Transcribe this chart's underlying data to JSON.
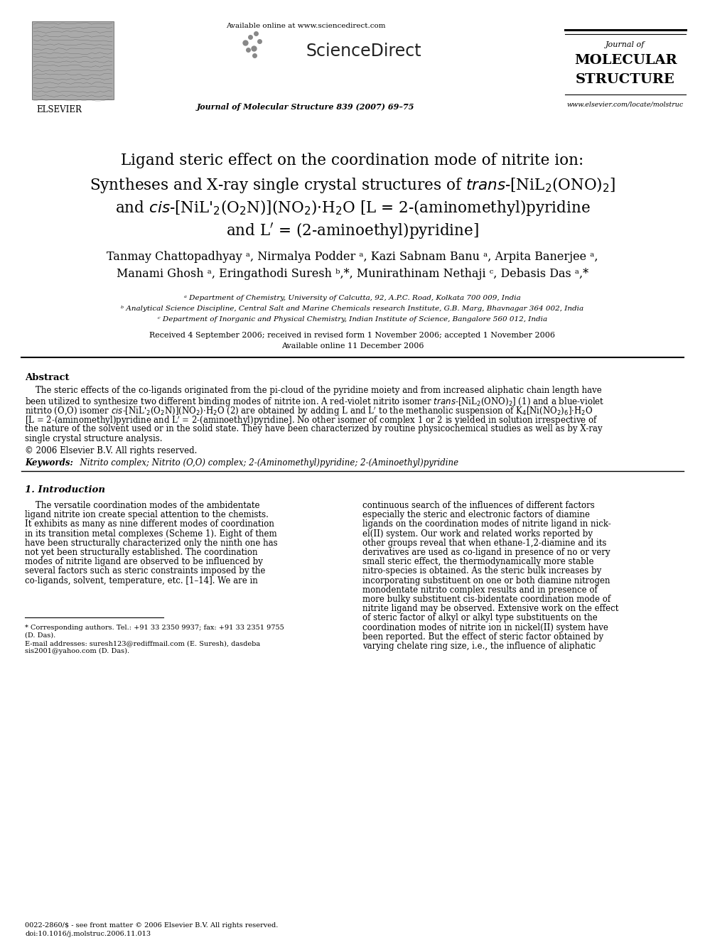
{
  "bg_color": "#ffffff",
  "header_available": "Available online at www.sciencedirect.com",
  "header_journal_info": "Journal of Molecular Structure 839 (2007) 69–75",
  "journal_name1": "Journal of",
  "journal_name2": "MOLECULAR",
  "journal_name3": "STRUCTURE",
  "journal_url": "www.elsevier.com/locate/molstruc",
  "elsevier_text": "ELSEVIER",
  "title1": "Ligand steric effect on the coordination mode of nitrite ion:",
  "title2_pre": "Syntheses and X-ray single crystal structures of ",
  "title2_italic": "trans",
  "title2_post": "-[NiL₂(ONO)₂]",
  "title3_pre": "and ",
  "title3_italic": "cis",
  "title3_post": "-[NiL′₂(O₂N)](NO₂)·H₂O [L = 2-(aminomethyl)pyridine",
  "title4": "and L′ = (2-aminoethyl)pyridine]",
  "authors1": "Tanmay Chattopadhyay ᵃ, Nirmalya Podder ᵃ, Kazi Sabnam Banu ᵃ, Arpita Banerjee ᵃ,",
  "authors2": "Manami Ghosh ᵃ, Eringathodi Suresh ᵇ,*, Munirathinam Nethaji ᶜ, Debasis Das ᵃ,*",
  "affil_a": "ᵃ Department of Chemistry, University of Calcutta, 92, A.P.C. Road, Kolkata 700 009, India",
  "affil_b": "ᵇ Analytical Science Discipline, Central Salt and Marine Chemicals research Institute, G.B. Marg, Bhavnagar 364 002, India",
  "affil_c": "ᶜ Department of Inorganic and Physical Chemistry, Indian Institute of Science, Bangalore 560 012, India",
  "received": "Received 4 September 2006; received in revised form 1 November 2006; accepted 1 November 2006",
  "available_online2": "Available online 11 December 2006",
  "abstract_title": "Abstract",
  "abs_line1": "    The steric effects of the co-ligands originated from the pi-cloud of the pyridine moiety and from increased aliphatic chain length have",
  "abs_line2": "been utilized to synthesize two different binding modes of nitrite ion. A red-violet nitrito isomer trans-[NiL₂(ONO)₂] (1) and a blue-violet",
  "abs_line3": "nitrito (O,O) isomer cis-[NiL′₂(O₂N)](NO₂)·H₂O (2) are obtained by adding L and L′ to the methanolic suspension of K₄[Ni(NO₂)₆]·H₂O",
  "abs_line4": "[L = 2-(aminomethyl)pyridine and L′ = 2-(aminoethyl)pyridine]. No other isomer of complex 1 or 2 is yielded in solution irrespective of",
  "abs_line5": "the nature of the solvent used or in the solid state. They have been characterized by routine physicochemical studies as well as by X-ray",
  "abs_line6": "single crystal structure analysis.",
  "copyright": "© 2006 Elsevier B.V. All rights reserved.",
  "keywords_label": "Keywords:",
  "keywords_text": "  Nitrito complex; Nitrito (O,O) complex; 2-(Aminomethyl)pyridine; 2-(Aminoethyl)pyridine",
  "sec1_title": "1. Introduction",
  "left_col": [
    "    The versatile coordination modes of the ambidentate",
    "ligand nitrite ion create special attention to the chemists.",
    "It exhibits as many as nine different modes of coordination",
    "in its transition metal complexes (Scheme 1). Eight of them",
    "have been structurally characterized only the ninth one has",
    "not yet been structurally established. The coordination",
    "modes of nitrite ligand are observed to be influenced by",
    "several factors such as steric constraints imposed by the",
    "co-ligands, solvent, temperature, etc. [1–14]. We are in"
  ],
  "right_col": [
    "continuous search of the influences of different factors",
    "especially the steric and electronic factors of diamine",
    "ligands on the coordination modes of nitrite ligand in nick-",
    "el(II) system. Our work and related works reported by",
    "other groups reveal that when ethane-1,2-diamine and its",
    "derivatives are used as co-ligand in presence of no or very",
    "small steric effect, the thermodynamically more stable",
    "nitro-species is obtained. As the steric bulk increases by",
    "incorporating substituent on one or both diamine nitrogen",
    "monodentate nitrito complex results and in presence of",
    "more bulky substituent cis-bidentate coordination mode of",
    "nitrite ligand may be observed. Extensive work on the effect",
    "of steric factor of alkyl or alkyl type substituents on the",
    "coordination modes of nitrite ion in nickel(II) system have",
    "been reported. But the effect of steric factor obtained by",
    "varying chelate ring size, i.e., the influence of aliphatic"
  ],
  "footnote1": "* Corresponding authors. Tel.: +91 33 2350 9937; fax: +91 33 2351 9755",
  "footnote1b": "(D. Das).",
  "footnote2": "E-mail addresses: suresh123@rediffmail.com (E. Suresh), dasdeba",
  "footnote2b": "sis2001@yahoo.com (D. Das).",
  "bottom1": "0022-2860/$ - see front matter © 2006 Elsevier B.V. All rights reserved.",
  "bottom2": "doi:10.1016/j.molstruc.2006.11.013"
}
